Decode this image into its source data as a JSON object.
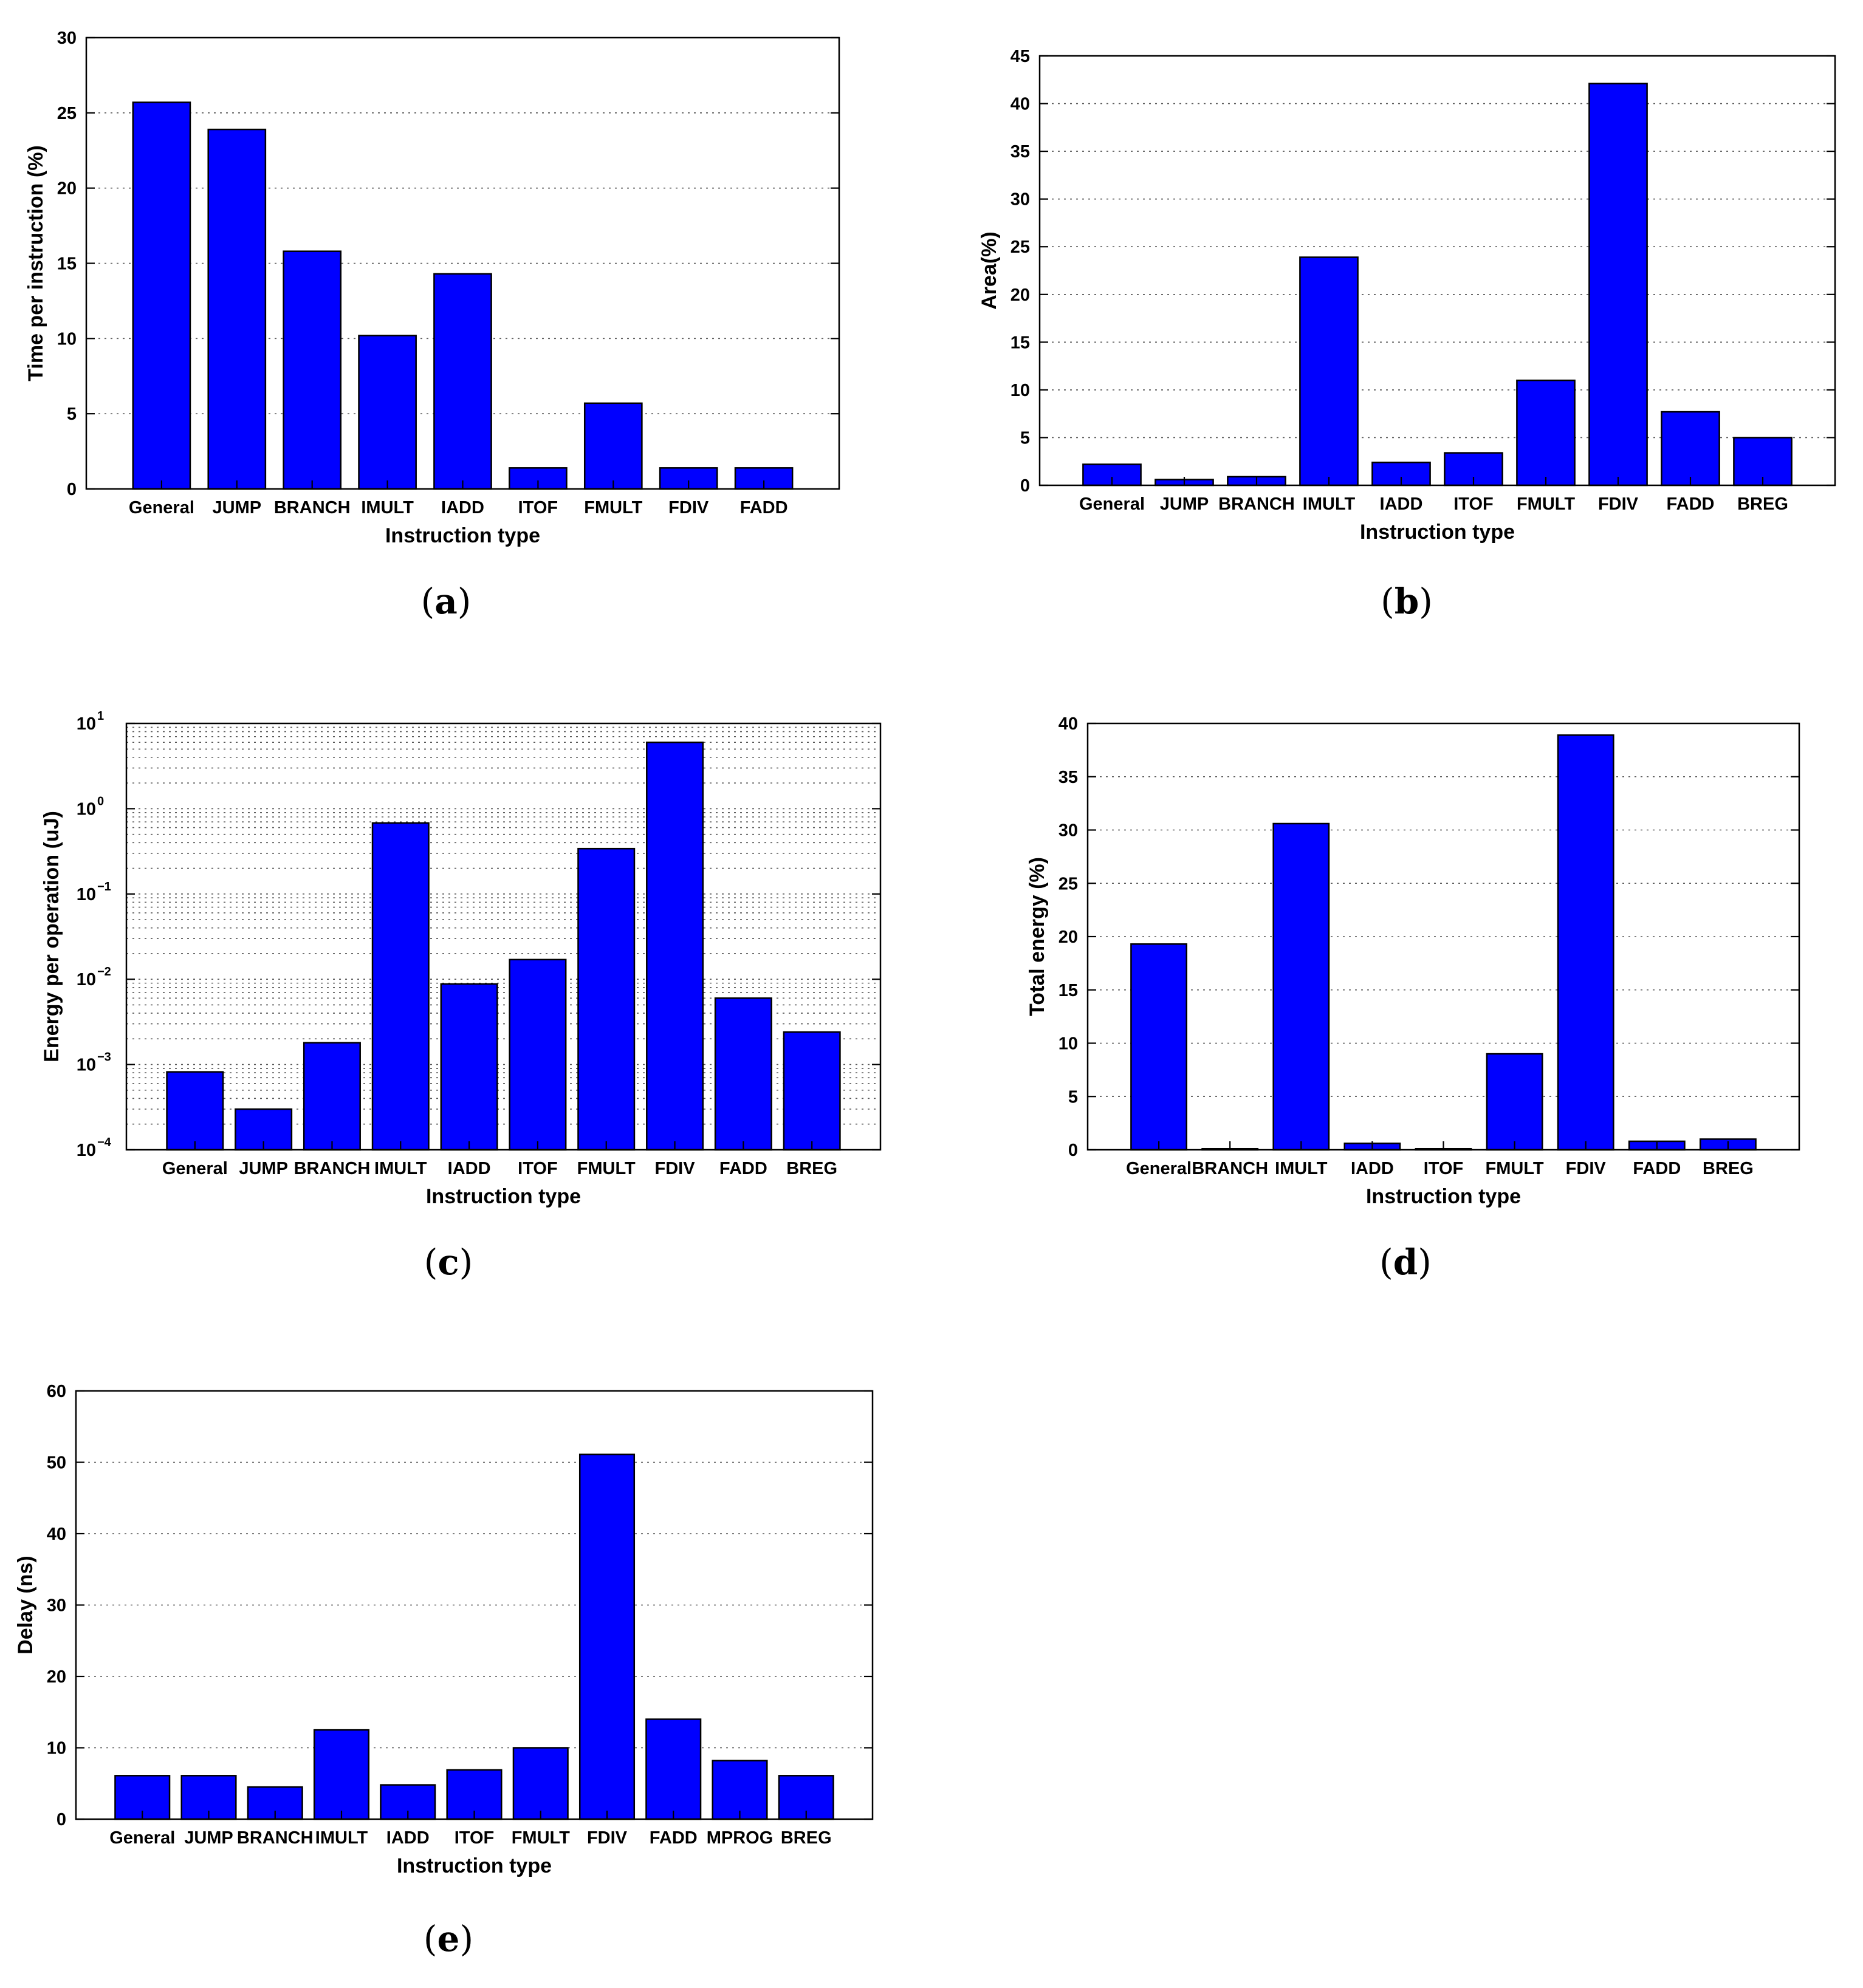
{
  "chart_data": [
    {
      "id": "a",
      "type": "bar",
      "caption": "a",
      "xlabel": "Instruction type",
      "ylabel": "Time per instruction (%)",
      "scale": "linear",
      "ylim": [
        0,
        30
      ],
      "yticks": [
        0,
        5,
        10,
        15,
        20,
        25,
        30
      ],
      "ytick_labels": [
        "0",
        "5",
        "10",
        "15",
        "20",
        "25",
        "30"
      ],
      "grid": true,
      "categories": [
        "General",
        "JUMP",
        "BRANCH",
        "IMULT",
        "IADD",
        "ITOF",
        "FMULT",
        "FDIV",
        "FADD"
      ],
      "values": [
        25.7,
        23.9,
        15.8,
        10.2,
        14.3,
        1.4,
        5.7,
        1.4,
        1.4
      ]
    },
    {
      "id": "b",
      "type": "bar",
      "caption": "b",
      "xlabel": "Instruction type",
      "ylabel": "Area(%)",
      "scale": "linear",
      "ylim": [
        0,
        45
      ],
      "yticks": [
        0,
        5,
        10,
        15,
        20,
        25,
        30,
        35,
        40,
        45
      ],
      "ytick_labels": [
        "0",
        "5",
        "10",
        "15",
        "20",
        "25",
        "30",
        "35",
        "40",
        "45"
      ],
      "grid": true,
      "categories": [
        "General",
        "JUMP",
        "BRANCH",
        "IMULT",
        "IADD",
        "ITOF",
        "FMULT",
        "FDIV",
        "FADD",
        "BREG"
      ],
      "values": [
        2.2,
        0.6,
        0.9,
        23.9,
        2.4,
        3.4,
        11.0,
        42.1,
        7.7,
        5.0
      ]
    },
    {
      "id": "c",
      "type": "bar",
      "caption": "c",
      "xlabel": "Instruction type",
      "ylabel": "Energy per operation (uJ)",
      "scale": "log",
      "ylim": [
        0.0001,
        10
      ],
      "yticks": [
        0.0001,
        0.001,
        0.01,
        0.1,
        1,
        10
      ],
      "ytick_base": "10",
      "ytick_exponents": [
        "−4",
        "−3",
        "−2",
        "−1",
        "0",
        "1"
      ],
      "grid": true,
      "categories": [
        "General",
        "JUMP",
        "BRANCH",
        "IMULT",
        "IADD",
        "ITOF",
        "FMULT",
        "FDIV",
        "FADD",
        "BREG"
      ],
      "values": [
        0.00082,
        0.0003,
        0.0018,
        0.68,
        0.0088,
        0.017,
        0.34,
        6.0,
        0.006,
        0.0024
      ]
    },
    {
      "id": "d",
      "type": "bar",
      "caption": "d",
      "xlabel": "Instruction type",
      "ylabel": "Total energy (%)",
      "scale": "linear",
      "ylim": [
        0,
        40
      ],
      "yticks": [
        0,
        5,
        10,
        15,
        20,
        25,
        30,
        35,
        40
      ],
      "ytick_labels": [
        "0",
        "5",
        "10",
        "15",
        "20",
        "25",
        "30",
        "35",
        "40"
      ],
      "grid": true,
      "categories": [
        "General",
        "BRANCH",
        "IMULT",
        "IADD",
        "ITOF",
        "FMULT",
        "FDIV",
        "FADD",
        "BREG"
      ],
      "values": [
        19.3,
        0.1,
        30.6,
        0.6,
        0.1,
        9.0,
        38.9,
        0.8,
        1.0
      ]
    },
    {
      "id": "e",
      "type": "bar",
      "caption": "e",
      "xlabel": "Instruction type",
      "ylabel": "Delay (ns)",
      "scale": "linear",
      "ylim": [
        0,
        60
      ],
      "yticks": [
        0,
        10,
        20,
        30,
        40,
        50,
        60
      ],
      "ytick_labels": [
        "0",
        "10",
        "20",
        "30",
        "40",
        "50",
        "60"
      ],
      "grid": true,
      "categories": [
        "General",
        "JUMP",
        "BRANCH",
        "IMULT",
        "IADD",
        "ITOF",
        "FMULT",
        "FDIV",
        "FADD",
        "MPROG",
        "BREG"
      ],
      "values": [
        6.1,
        6.1,
        4.5,
        12.5,
        4.8,
        6.9,
        10.0,
        51.1,
        14.0,
        8.2,
        6.1
      ]
    }
  ]
}
